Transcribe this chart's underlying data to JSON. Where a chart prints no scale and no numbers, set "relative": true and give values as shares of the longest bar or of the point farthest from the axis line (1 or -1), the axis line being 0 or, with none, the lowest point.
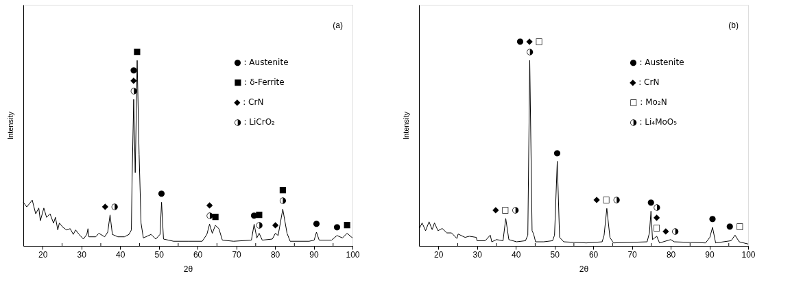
{
  "chart_data": [
    {
      "type": "line",
      "title": "(a)",
      "xlabel": "2θ",
      "ylabel": "Intensity",
      "relative": true,
      "tick_labels": "x",
      "grid": false,
      "marker": "none",
      "line_style": "solid",
      "xlim": [
        15,
        100
      ],
      "xticks": [
        20,
        {
          "value": 25,
          "label": null
        },
        30,
        {
          "value": 35,
          "label": null
        },
        40,
        {
          "value": 45,
          "label": null
        },
        50,
        {
          "value": 55,
          "label": null
        },
        60,
        {
          "value": 65,
          "label": null
        },
        70,
        {
          "value": 75,
          "label": null
        },
        80,
        {
          "value": 85,
          "label": null
        },
        90,
        {
          "value": 95,
          "label": null
        },
        100
      ],
      "x": [
        15.0,
        15.9,
        17.3,
        18.2,
        19.0,
        19.4,
        20.3,
        21.0,
        21.9,
        22.8,
        23.3,
        23.9,
        24.3,
        25.3,
        26.2,
        27.1,
        27.9,
        28.5,
        29.4,
        30.5,
        31.4,
        31.7,
        31.9,
        33.7,
        34.5,
        36.0,
        36.8,
        37.4,
        38.0,
        39.4,
        41.1,
        42.3,
        42.9,
        43.1,
        43.5,
        43.9,
        44.4,
        44.9,
        45.4,
        46.0,
        48.0,
        49.2,
        50.3,
        50.7,
        51.2,
        53.8,
        57.8,
        61.2,
        62.4,
        63.1,
        63.8,
        64.6,
        65.5,
        66.4,
        69.3,
        73.9,
        74.6,
        75.3,
        75.9,
        76.7,
        79.3,
        80.1,
        80.8,
        82.0,
        83.1,
        83.9,
        88.8,
        90.1,
        90.7,
        91.4,
        94.6,
        96.0,
        97.4,
        98.6,
        100.0
      ],
      "series": [
        {
          "color": "#000000",
          "values": [
            0.235,
            0.21,
            0.247,
            0.173,
            0.204,
            0.136,
            0.204,
            0.154,
            0.173,
            0.123,
            0.154,
            0.086,
            0.123,
            0.099,
            0.086,
            0.093,
            0.062,
            0.086,
            0.062,
            0.037,
            0.062,
            0.093,
            0.049,
            0.049,
            0.068,
            0.049,
            0.074,
            0.167,
            0.062,
            0.049,
            0.049,
            0.062,
            0.086,
            0.37,
            0.79,
            0.395,
            1.0,
            0.494,
            0.123,
            0.043,
            0.062,
            0.037,
            0.062,
            0.235,
            0.037,
            0.025,
            0.025,
            0.025,
            0.062,
            0.117,
            0.068,
            0.111,
            0.093,
            0.031,
            0.025,
            0.031,
            0.117,
            0.043,
            0.068,
            0.031,
            0.037,
            0.068,
            0.056,
            0.198,
            0.068,
            0.025,
            0.025,
            0.031,
            0.074,
            0.031,
            0.031,
            0.056,
            0.043,
            0.068,
            0.043
          ]
        }
      ],
      "annotations": [
        "● : Austenite",
        "■ : δ-Ferrite",
        "◆ : CrN",
        "◑ : LiCrO₂",
        {
          "text": "◆ ◑",
          "x": 37.4,
          "y": 0.167
        },
        {
          "text": "●\n◆\n◑",
          "x": 43.5,
          "y": 0.79
        },
        {
          "text": "■",
          "x": 44.4,
          "y": 1.0
        },
        {
          "text": "●",
          "x": 50.7,
          "y": 0.235
        },
        {
          "text": "◆\n◑",
          "x": 63.1,
          "y": 0.117
        },
        {
          "text": "■",
          "x": 64.6,
          "y": 0.111
        },
        {
          "text": "●",
          "x": 74.6,
          "y": 0.117
        },
        {
          "text": "■\n◑",
          "x": 75.9,
          "y": 0.068
        },
        {
          "text": "◆",
          "x": 80.1,
          "y": 0.068
        },
        {
          "text": "■\n◑",
          "x": 82.0,
          "y": 0.198
        },
        {
          "text": "●",
          "x": 90.7,
          "y": 0.074
        },
        {
          "text": "●",
          "x": 96.0,
          "y": 0.056
        },
        {
          "text": "■",
          "x": 98.6,
          "y": 0.068
        }
      ]
    },
    {
      "type": "line",
      "title": "(b)",
      "xlabel": "2θ",
      "ylabel": "Intensity",
      "relative": true,
      "tick_labels": "x",
      "grid": false,
      "marker": "none",
      "line_style": "solid",
      "xlim": [
        15,
        100
      ],
      "xticks": [
        20,
        {
          "value": 25,
          "label": null
        },
        30,
        {
          "value": 35,
          "label": null
        },
        40,
        {
          "value": 45,
          "label": null
        },
        50,
        {
          "value": 55,
          "label": null
        },
        60,
        {
          "value": 65,
          "label": null
        },
        70,
        {
          "value": 75,
          "label": null
        },
        80,
        {
          "value": 85,
          "label": null
        },
        90,
        {
          "value": 95,
          "label": null
        },
        100
      ],
      "x": [
        15.1,
        15.8,
        16.7,
        17.6,
        18.4,
        19.0,
        19.9,
        21.0,
        22.2,
        23.4,
        24.8,
        25.1,
        26.9,
        28.0,
        29.8,
        30.0,
        32.1,
        33.4,
        33.8,
        35.0,
        36.7,
        37.4,
        38.2,
        40.2,
        42.5,
        43.1,
        43.6,
        44.2,
        44.6,
        45.1,
        47.2,
        49.5,
        50.0,
        50.7,
        51.3,
        52.4,
        58.2,
        62.3,
        62.8,
        63.5,
        64.3,
        65.2,
        73.9,
        74.5,
        74.9,
        75.3,
        76.4,
        77.1,
        80.0,
        80.9,
        89.0,
        90.1,
        90.8,
        91.6,
        95.6,
        96.6,
        97.7,
        100.0
      ],
      "series": [
        {
          "color": "#000000",
          "values": [
            0.094,
            0.124,
            0.082,
            0.13,
            0.088,
            0.124,
            0.082,
            0.094,
            0.07,
            0.07,
            0.04,
            0.064,
            0.046,
            0.052,
            0.046,
            0.028,
            0.028,
            0.058,
            0.022,
            0.034,
            0.028,
            0.148,
            0.034,
            0.022,
            0.028,
            0.058,
            1.0,
            0.082,
            0.064,
            0.022,
            0.022,
            0.028,
            0.058,
            0.456,
            0.046,
            0.022,
            0.016,
            0.022,
            0.058,
            0.202,
            0.046,
            0.016,
            0.022,
            0.07,
            0.187,
            0.034,
            0.052,
            0.016,
            0.034,
            0.022,
            0.016,
            0.046,
            0.1,
            0.016,
            0.028,
            0.058,
            0.022,
            0.01
          ]
        }
      ],
      "annotations": [
        "● : Austenite",
        "◆ : CrN",
        "□ : Mo₂N",
        "◑ : Li₄MoO₅",
        {
          "text": "◆ □ ◑",
          "x": 37.4,
          "y": 0.148
        },
        {
          "text": "● ◆ □\n◑",
          "x": 43.6,
          "y": 1.0
        },
        {
          "text": "●",
          "x": 50.7,
          "y": 0.456
        },
        {
          "text": "◆ □ ◑",
          "x": 63.5,
          "y": 0.202
        },
        {
          "text": "●",
          "x": 74.9,
          "y": 0.187
        },
        {
          "text": "◑\n◆\n□",
          "x": 76.4,
          "y": 0.052
        },
        {
          "text": "◆ ◑",
          "x": 80.0,
          "y": 0.034
        },
        {
          "text": "●",
          "x": 90.8,
          "y": 0.1
        },
        {
          "text": "● □",
          "x": 96.6,
          "y": 0.058
        }
      ]
    }
  ]
}
